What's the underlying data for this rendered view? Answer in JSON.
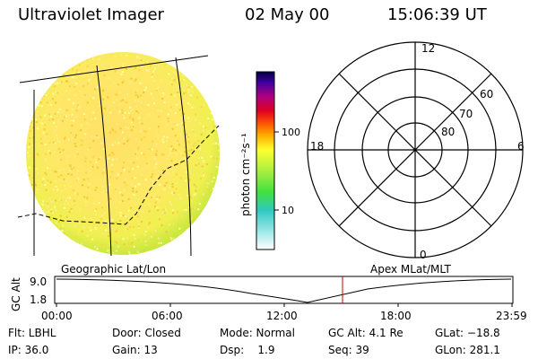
{
  "header": {
    "title": "Ultraviolet Imager",
    "date": "02 May 00",
    "time": "15:06:39 UT"
  },
  "colorbar": {
    "unit_label": "photon cm⁻²s⁻¹",
    "tick_labels": [
      "100",
      "10"
    ]
  },
  "polar": {
    "mlt_labels": [
      "12",
      "6",
      "0",
      "18"
    ],
    "mlat_labels": [
      "60",
      "70",
      "80"
    ]
  },
  "panels": {
    "geo_label": "Geographic Lat/Lon",
    "apex_label": "Apex MLat/MLT"
  },
  "timeline": {
    "ylabel": "GC Alt",
    "y_ticks": [
      "9.0",
      "1.8"
    ],
    "x_ticks": [
      "00:00",
      "06:00",
      "12:00",
      "18:00",
      "23:59"
    ],
    "current_time": "15:06:39"
  },
  "status": {
    "flt": "Flt: LBHL",
    "door": "Door: Closed",
    "mode": "Mode: Normal",
    "gc_alt": "GC Alt: 4.1 Re",
    "glat": "GLat: −18.8",
    "ip": "IP: 36.0",
    "gain": "Gain: 13",
    "dsp": "Dsp:    1.9",
    "seq": "Seq: 39",
    "glon": "GLon: 281.1"
  }
}
